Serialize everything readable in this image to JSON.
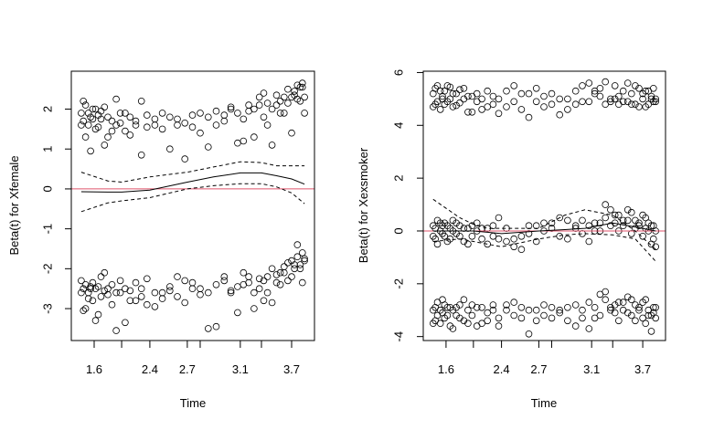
{
  "chart_data": [
    {
      "type": "scatter",
      "ylabel": "Beta(t) for Xfemale",
      "xlabel": "Time",
      "ylim": [
        -3.8,
        2.95
      ],
      "xlim": [
        1.4,
        3.9
      ],
      "yticks": [
        -3,
        -2,
        -1,
        0,
        1,
        2
      ],
      "xticks": [
        1.6,
        2.0,
        2.4,
        2.7,
        2.8,
        3.1,
        3.3,
        3.7
      ],
      "xtick_labels": [
        "1.6",
        "",
        "2.4",
        "2.7",
        "",
        "3.1",
        "",
        "3.7"
      ],
      "reference_line": {
        "y": 0,
        "color": "#DF536B"
      },
      "x": [
        1.42,
        1.45,
        1.48,
        1.52,
        1.55,
        1.58,
        1.62,
        1.66,
        1.7,
        1.75,
        1.8,
        1.86,
        1.92,
        1.98,
        2.05,
        2.12,
        2.2,
        2.28,
        2.36,
        2.44,
        2.5,
        2.56,
        2.62,
        2.68,
        2.74,
        2.8,
        2.86,
        2.92,
        2.98,
        3.03,
        3.08,
        3.13,
        3.18,
        3.23,
        3.28,
        3.33,
        3.38,
        3.44,
        3.5,
        3.55,
        3.6,
        3.65,
        3.7,
        3.74,
        3.78,
        3.82,
        3.85,
        3.88
      ],
      "point_sets": [
        [
          1.9,
          1.7,
          2.1,
          1.6,
          1.8,
          2.0,
          1.5,
          1.85,
          1.75,
          2.05,
          1.3,
          1.7,
          1.6,
          1.9,
          1.45,
          1.8,
          1.7,
          2.2,
          1.55,
          1.6,
          1.9,
          1.0,
          1.75,
          1.65,
          1.85,
          1.4,
          1.8,
          1.95,
          1.7,
          2.05,
          1.9,
          1.2,
          2.1,
          2.0,
          2.3,
          1.8,
          2.15,
          2.0,
          2.35,
          2.2,
          1.9,
          2.5,
          2.3,
          2.45,
          2.6,
          2.2,
          2.55,
          2.3
        ],
        [
          1.6,
          2.2,
          1.3,
          1.9,
          0.95,
          1.75,
          2.0,
          1.55,
          1.95,
          1.1,
          1.8,
          1.45,
          2.25,
          1.65,
          1.9,
          1.35,
          1.6,
          0.85,
          1.85,
          1.75,
          1.5,
          1.8,
          1.6,
          0.75,
          1.55,
          1.9,
          1.05,
          1.6,
          1.85,
          2.0,
          1.15,
          1.75,
          1.95,
          1.3,
          2.1,
          2.4,
          1.6,
          1.1,
          2.1,
          1.9,
          2.3,
          2.15,
          1.4,
          2.35,
          2.25,
          2.55,
          2.65,
          1.9
        ],
        [
          -2.3,
          -2.5,
          -3.0,
          -2.6,
          -2.45,
          -2.8,
          -2.5,
          -3.15,
          -2.2,
          -2.55,
          -2.65,
          -2.4,
          -3.55,
          -2.6,
          -2.5,
          -2.8,
          -2.35,
          -2.7,
          -2.9,
          -2.6,
          -2.75,
          -2.55,
          -2.7,
          -2.3,
          -2.5,
          -2.65,
          -3.5,
          -2.4,
          -2.2,
          -2.55,
          -2.45,
          -2.1,
          -2.35,
          -2.6,
          -2.25,
          -2.8,
          -2.2,
          -2.0,
          -2.35,
          -2.1,
          -1.95,
          -2.3,
          -1.8,
          -2.0,
          -1.7,
          -1.9,
          -1.6,
          -1.8
        ],
        [
          -2.6,
          -3.05,
          -2.4,
          -2.75,
          -2.5,
          -2.35,
          -3.3,
          -2.45,
          -2.7,
          -2.1,
          -2.5,
          -2.9,
          -2.6,
          -2.3,
          -3.35,
          -2.55,
          -2.8,
          -2.5,
          -2.25,
          -2.95,
          -2.6,
          -2.45,
          -2.2,
          -2.85,
          -2.35,
          -2.5,
          -2.6,
          -3.45,
          -2.3,
          -2.6,
          -3.1,
          -2.4,
          -2.2,
          -3.0,
          -2.5,
          -2.3,
          -2.6,
          -2.85,
          -2.15,
          -2.4,
          -2.1,
          -1.85,
          -2.2,
          -1.9,
          -1.4,
          -2.0,
          -2.35,
          -1.75
        ]
      ],
      "fit": {
        "x": [
          1.42,
          1.8,
          2.0,
          2.4,
          2.7,
          2.9,
          3.1,
          3.3,
          3.5,
          3.7,
          3.88
        ],
        "estimate": [
          -0.07,
          -0.08,
          -0.08,
          -0.03,
          0.17,
          0.3,
          0.4,
          0.4,
          0.33,
          0.25,
          0.12
        ],
        "upper": [
          0.42,
          0.2,
          0.17,
          0.3,
          0.42,
          0.55,
          0.68,
          0.66,
          0.58,
          0.58,
          0.58
        ],
        "lower": [
          -0.57,
          -0.35,
          -0.3,
          -0.22,
          0.0,
          0.08,
          0.13,
          0.13,
          0.05,
          -0.1,
          -0.37
        ]
      }
    },
    {
      "type": "scatter",
      "ylabel": "Beta(t) for Xexsmoker",
      "xlabel": "Time",
      "ylim": [
        -4.15,
        6.05
      ],
      "xlim": [
        1.4,
        3.9
      ],
      "yticks": [
        -4,
        -2,
        0,
        2,
        4,
        6
      ],
      "xticks": [
        1.6,
        2.0,
        2.4,
        2.7,
        2.8,
        3.1,
        3.3,
        3.7
      ],
      "xtick_labels": [
        "1.6",
        "",
        "2.4",
        "2.7",
        "",
        "3.1",
        "",
        "3.7"
      ],
      "reference_line": {
        "y": 0,
        "color": "#DF536B"
      },
      "x": [
        1.42,
        1.45,
        1.48,
        1.52,
        1.55,
        1.58,
        1.62,
        1.66,
        1.7,
        1.75,
        1.8,
        1.86,
        1.92,
        1.98,
        2.05,
        2.12,
        2.2,
        2.28,
        2.36,
        2.44,
        2.5,
        2.56,
        2.62,
        2.68,
        2.74,
        2.8,
        2.86,
        2.92,
        2.98,
        3.03,
        3.08,
        3.13,
        3.18,
        3.23,
        3.28,
        3.33,
        3.38,
        3.44,
        3.5,
        3.55,
        3.6,
        3.65,
        3.7,
        3.74,
        3.78,
        3.82,
        3.85,
        3.88
      ],
      "point_sets": [
        [
          4.7,
          5.4,
          4.9,
          5.3,
          5.1,
          4.8,
          5.5,
          5.0,
          5.2,
          4.75,
          5.35,
          5.0,
          4.5,
          5.1,
          4.9,
          4.6,
          5.3,
          4.8,
          5.0,
          4.7,
          5.5,
          4.6,
          5.2,
          4.9,
          5.1,
          4.8,
          4.4,
          5.0,
          5.3,
          4.9,
          5.6,
          5.2,
          5.4,
          4.8,
          5.0,
          5.5,
          5.1,
          4.9,
          5.6,
          5.2,
          4.8,
          5.4,
          5.0,
          4.7,
          5.3,
          5.1,
          4.9,
          5.0
        ],
        [
          5.2,
          4.8,
          5.5,
          4.6,
          5.0,
          5.3,
          4.9,
          5.45,
          4.7,
          5.2,
          4.85,
          5.4,
          5.1,
          4.5,
          5.2,
          5.0,
          4.7,
          5.1,
          4.45,
          5.3,
          4.9,
          5.2,
          4.3,
          5.4,
          4.7,
          5.2,
          5.0,
          4.6,
          4.8,
          5.5,
          4.9,
          5.3,
          5.1,
          5.65,
          4.9,
          5.0,
          4.8,
          5.3,
          4.9,
          4.8,
          5.5,
          4.7,
          5.2,
          5.3,
          4.8,
          5.0,
          5.4,
          4.9
        ],
        [
          0.2,
          -0.3,
          0.4,
          0.0,
          -0.1,
          0.3,
          -0.4,
          0.1,
          0.0,
          0.3,
          -0.2,
          0.1,
          -0.5,
          0.2,
          0.0,
          -0.3,
          0.1,
          -0.2,
          0.5,
          -0.4,
          -0.3,
          -0.7,
          -0.1,
          0.2,
          0.0,
          0.3,
          -0.2,
          0.4,
          0.1,
          -0.1,
          0.2,
          0.0,
          0.3,
          0.5,
          0.8,
          0.3,
          0.6,
          0.2,
          0.4,
          0.7,
          0.1,
          0.3,
          -0.2,
          0.5,
          0.0,
          0.2,
          -0.3,
          0.0
        ],
        [
          -0.2,
          0.1,
          -0.5,
          0.3,
          0.2,
          -0.2,
          0.2,
          -0.3,
          0.4,
          -0.1,
          0.2,
          -0.4,
          0.1,
          -0.2,
          0.3,
          0.1,
          -0.5,
          0.2,
          -0.3,
          0.1,
          -0.6,
          -0.2,
          0.2,
          -0.4,
          0.3,
          0.1,
          0.5,
          -0.3,
          0.2,
          0.4,
          -0.4,
          0.3,
          0.0,
          1.0,
          0.2,
          0.6,
          0.0,
          0.4,
          0.8,
          -0.1,
          0.4,
          0.2,
          0.6,
          0.1,
          0.3,
          -0.5,
          0.2,
          -0.6
        ],
        [
          -3.5,
          -2.9,
          -3.2,
          -3.0,
          -2.6,
          -3.3,
          -2.9,
          -3.6,
          -3.0,
          -3.2,
          -2.8,
          -3.4,
          -3.0,
          -3.2,
          -2.9,
          -3.5,
          -3.1,
          -2.8,
          -3.3,
          -3.0,
          -2.7,
          -3.3,
          -3.9,
          -3.0,
          -3.2,
          -2.9,
          -3.1,
          -3.4,
          -2.8,
          -3.0,
          -2.7,
          -3.3,
          -2.4,
          -2.6,
          -2.9,
          -3.1,
          -2.7,
          -3.0,
          -2.5,
          -3.2,
          -2.8,
          -3.0,
          -3.3,
          -2.6,
          -3.0,
          -3.2,
          -2.9,
          -3.3
        ],
        [
          -3.0,
          -3.4,
          -2.7,
          -3.5,
          -3.1,
          -2.8,
          -3.2,
          -2.9,
          -3.7,
          -2.9,
          -3.3,
          -2.6,
          -3.5,
          -2.8,
          -3.6,
          -2.9,
          -3.4,
          -3.0,
          -3.6,
          -2.8,
          -3.2,
          -2.9,
          -3.0,
          -3.4,
          -2.8,
          -3.3,
          -3.0,
          -2.9,
          -3.6,
          -3.3,
          -3.7,
          -2.9,
          -3.2,
          -2.3,
          -3.0,
          -2.8,
          -3.4,
          -2.7,
          -3.1,
          -2.6,
          -3.4,
          -2.9,
          -2.7,
          -3.5,
          -3.2,
          -3.8,
          -3.1,
          -2.9
        ]
      ],
      "fit": {
        "x": [
          1.42,
          1.8,
          2.0,
          2.2,
          2.4,
          2.7,
          2.9,
          3.05,
          3.3,
          3.6,
          3.88
        ],
        "estimate": [
          0.0,
          0.0,
          0.0,
          -0.05,
          -0.1,
          0.0,
          0.05,
          0.1,
          0.3,
          0.15,
          0.0
        ],
        "upper": [
          1.2,
          0.5,
          0.25,
          0.1,
          0.1,
          0.1,
          0.6,
          0.8,
          0.6,
          0.0,
          -0.7
        ],
        "lower": [
          -0.4,
          -0.3,
          -0.4,
          -0.5,
          -0.6,
          -0.3,
          -0.15,
          -0.1,
          -0.15,
          -0.3,
          -1.15
        ]
      }
    }
  ]
}
